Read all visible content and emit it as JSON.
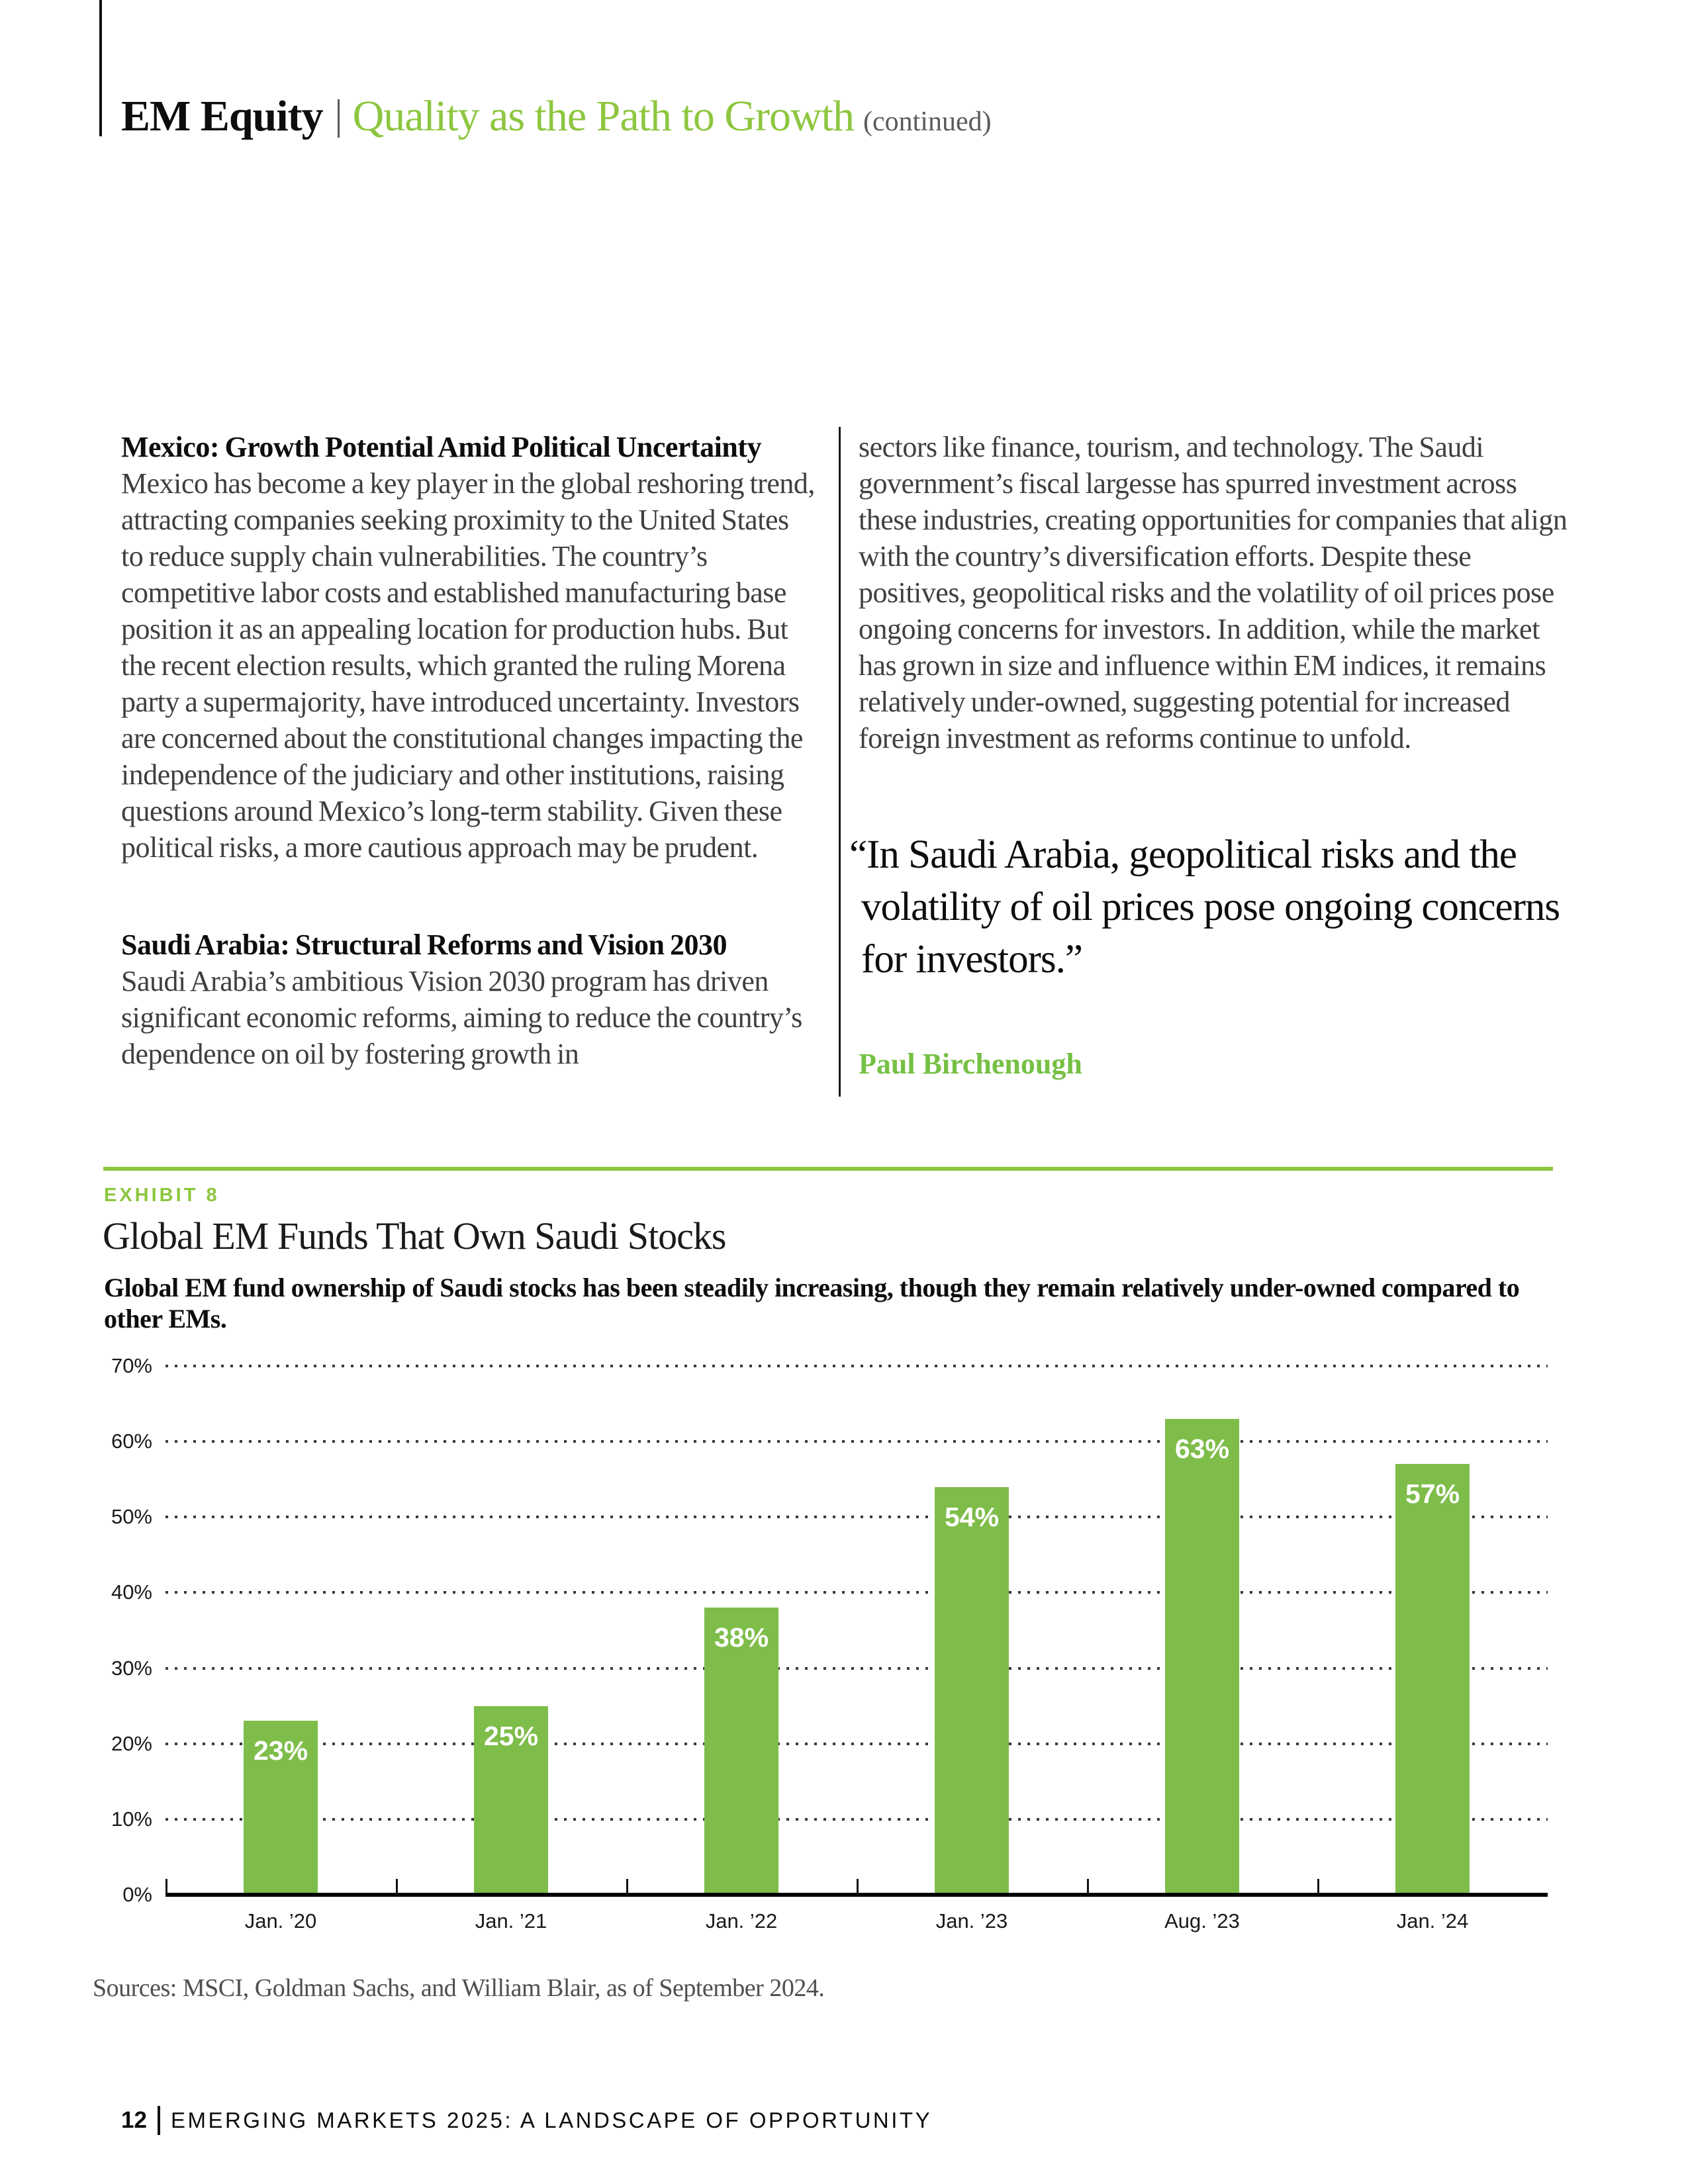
{
  "page": {
    "header": {
      "section": "EM Equity",
      "title": "Quality as the Path to Growth",
      "suffix": "(continued)"
    },
    "columns": {
      "left": [
        {
          "heading": "Mexico: Growth Potential Amid Political Uncertainty",
          "body": "Mexico has become a key player in the global reshoring trend, attracting companies seeking proximity to the United States to reduce supply chain vulnerabilities. The country’s competitive labor costs and established manufacturing base position it as an appealing location for production hubs. But the recent election results, which granted the ruling Morena party a supermajority, have introduced uncertainty. Investors are concerned about the constitutional changes impacting the independence of the judiciary and other institutions, raising questions around Mexico’s long-term stability. Given these political risks, a more cautious approach may be prudent."
        },
        {
          "heading": "Saudi Arabia: Structural Reforms and Vision 2030",
          "body": "Saudi Arabia’s ambitious Vision 2030 program has driven significant economic reforms, aiming to reduce the country’s dependence on oil by fostering growth in"
        }
      ],
      "right": [
        {
          "body": "sectors like finance, tourism, and technology. The Saudi government’s fiscal largesse has spurred investment across these industries, creating opportunities for companies that align with the country’s diversification efforts. Despite these positives, geopolitical risks and the volatility of oil prices pose ongoing concerns for investors. In addition, while the market has grown in size and influence within EM indices, it remains relatively under-owned, suggesting potential for increased foreign investment as reforms continue to unfold."
        }
      ]
    },
    "quote": {
      "text": "“In Saudi Arabia, geopolitical risks and the volatility of oil prices pose ongoing concerns for investors.”",
      "attribution": "Paul Birchenough"
    },
    "exhibit": {
      "label": "EXHIBIT 8",
      "title": "Global EM Funds That Own Saudi Stocks",
      "subtitle": "Global EM fund ownership of Saudi stocks has been steadily increasing, though they remain relatively under-owned compared to other EMs."
    },
    "sources": "Sources: MSCI, Goldman Sachs, and William Blair, as of September 2024.",
    "footer": {
      "page_number": "12",
      "text": "EMERGING MARKETS 2025: A LANDSCAPE OF OPPORTUNITY"
    }
  },
  "chart_data": {
    "type": "bar",
    "categories": [
      "Jan. ’20",
      "Jan. ’21",
      "Jan. ’22",
      "Jan. ’23",
      "Aug. ’23",
      "Jan. ’24"
    ],
    "values": [
      23,
      25,
      38,
      54,
      63,
      57
    ],
    "value_labels": [
      "23%",
      "25%",
      "38%",
      "54%",
      "63%",
      "57%"
    ],
    "title": "Global EM Funds That Own Saudi Stocks",
    "xlabel": "",
    "ylabel": "",
    "ylim": [
      0,
      70
    ],
    "ytick_step": 10,
    "ytick_labels": [
      "0%",
      "10%",
      "20%",
      "30%",
      "40%",
      "50%",
      "60%",
      "70%"
    ],
    "grid": "horizontal-dotted",
    "legend": "none",
    "bar_color": "#7ebd4a",
    "bar_label_color": "#ffffff",
    "axis_color": "#000000"
  },
  "colors": {
    "accent_green": "#8dc63f",
    "bar_green": "#7ebd4a",
    "attribution_green": "#76c043",
    "heading_text": "#0d0d0d",
    "body_text": "#3f3f3f",
    "muted_text": "#4f4f4f"
  }
}
